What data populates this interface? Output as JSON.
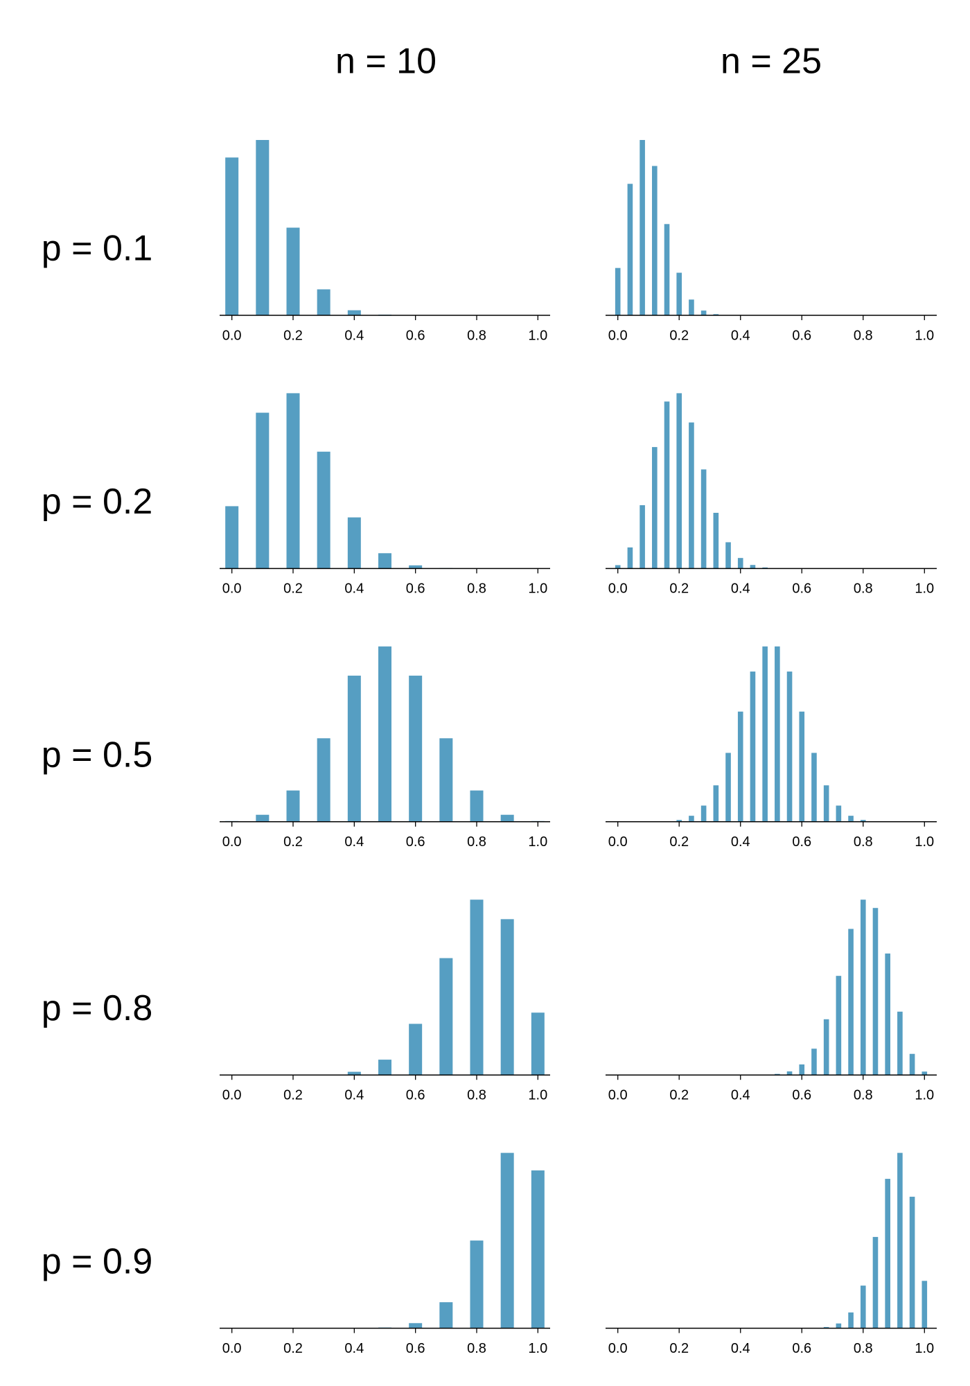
{
  "column_titles": [
    "n = 10",
    "n = 25"
  ],
  "row_labels": [
    "p = 0.1",
    "p = 0.2",
    "p = 0.5",
    "p = 0.8",
    "p = 0.9"
  ],
  "chart_data": [
    {
      "type": "bar",
      "color": "#569ec2",
      "x": [
        0,
        0.1,
        0.2,
        0.3,
        0.4,
        0.5,
        0.6,
        0.7,
        0.8,
        0.9,
        1
      ],
      "values": [
        0.3487,
        0.3874,
        0.1937,
        0.0574,
        0.0112,
        0.0015,
        0.0001,
        0,
        0,
        0,
        0
      ],
      "xlim": [
        -0.04,
        1.04
      ],
      "ylim": [
        0,
        0.3874
      ],
      "xticks": [
        {
          "value": 0,
          "label": "0.0"
        },
        0.2,
        0.4,
        0.6,
        0.8,
        {
          "value": 1,
          "label": "1.0"
        }
      ]
    },
    {
      "type": "bar",
      "color": "#569ec2",
      "x": [
        0,
        0.04,
        0.08,
        0.12,
        0.16,
        0.2,
        0.24,
        0.28,
        0.32,
        0.36,
        0.4,
        0.44,
        0.48,
        0.52,
        0.56,
        0.6,
        0.64,
        0.68,
        0.72,
        0.76,
        0.8,
        0.84,
        0.88,
        0.92,
        0.96,
        1
      ],
      "values": [
        0.0718,
        0.1994,
        0.2659,
        0.2265,
        0.1384,
        0.0646,
        0.0239,
        0.0072,
        0.0018,
        0.0004,
        0.0001,
        0,
        0,
        0,
        0,
        0,
        0,
        0,
        0,
        0,
        0,
        0,
        0,
        0,
        0,
        0
      ],
      "xlim": [
        -0.04,
        1.04
      ],
      "ylim": [
        0,
        0.2659
      ],
      "xticks": [
        {
          "value": 0,
          "label": "0.0"
        },
        0.2,
        0.4,
        0.6,
        0.8,
        {
          "value": 1,
          "label": "1.0"
        }
      ]
    },
    {
      "type": "bar",
      "color": "#569ec2",
      "x": [
        0,
        0.1,
        0.2,
        0.3,
        0.4,
        0.5,
        0.6,
        0.7,
        0.8,
        0.9,
        1
      ],
      "values": [
        0.1074,
        0.2684,
        0.302,
        0.2013,
        0.0881,
        0.0264,
        0.0055,
        0.0008,
        0.0001,
        0,
        0
      ],
      "xlim": [
        -0.04,
        1.04
      ],
      "ylim": [
        0,
        0.302
      ],
      "xticks": [
        {
          "value": 0,
          "label": "0.0"
        },
        0.2,
        0.4,
        0.6,
        0.8,
        {
          "value": 1,
          "label": "1.0"
        }
      ]
    },
    {
      "type": "bar",
      "color": "#569ec2",
      "x": [
        0,
        0.04,
        0.08,
        0.12,
        0.16,
        0.2,
        0.24,
        0.28,
        0.32,
        0.36,
        0.4,
        0.44,
        0.48,
        0.52,
        0.56,
        0.6,
        0.64,
        0.68,
        0.72,
        0.76,
        0.8,
        0.84,
        0.88,
        0.92,
        0.96,
        1
      ],
      "values": [
        0.0038,
        0.0236,
        0.0708,
        0.1358,
        0.1867,
        0.196,
        0.1633,
        0.1108,
        0.0623,
        0.0294,
        0.0118,
        0.004,
        0.0012,
        0.0003,
        0.0001,
        0,
        0,
        0,
        0,
        0,
        0,
        0,
        0,
        0,
        0,
        0
      ],
      "xlim": [
        -0.04,
        1.04
      ],
      "ylim": [
        0,
        0.196
      ],
      "xticks": [
        {
          "value": 0,
          "label": "0.0"
        },
        0.2,
        0.4,
        0.6,
        0.8,
        {
          "value": 1,
          "label": "1.0"
        }
      ]
    },
    {
      "type": "bar",
      "color": "#569ec2",
      "x": [
        0,
        0.1,
        0.2,
        0.3,
        0.4,
        0.5,
        0.6,
        0.7,
        0.8,
        0.9,
        1
      ],
      "values": [
        0.001,
        0.0098,
        0.0439,
        0.1172,
        0.2051,
        0.2461,
        0.2051,
        0.1172,
        0.0439,
        0.0098,
        0.001
      ],
      "xlim": [
        -0.04,
        1.04
      ],
      "ylim": [
        0,
        0.2461
      ],
      "xticks": [
        {
          "value": 0,
          "label": "0.0"
        },
        0.2,
        0.4,
        0.6,
        0.8,
        {
          "value": 1,
          "label": "1.0"
        }
      ]
    },
    {
      "type": "bar",
      "color": "#569ec2",
      "x": [
        0,
        0.04,
        0.08,
        0.12,
        0.16,
        0.2,
        0.24,
        0.28,
        0.32,
        0.36,
        0.4,
        0.44,
        0.48,
        0.52,
        0.56,
        0.6,
        0.64,
        0.68,
        0.72,
        0.76,
        0.8,
        0.84,
        0.88,
        0.92,
        0.96,
        1
      ],
      "values": [
        0,
        0,
        0,
        0.0001,
        0.0004,
        0.0016,
        0.0053,
        0.0143,
        0.0322,
        0.0609,
        0.0974,
        0.1328,
        0.155,
        0.155,
        0.1328,
        0.0974,
        0.0609,
        0.0322,
        0.0143,
        0.0053,
        0.0016,
        0.0004,
        0.0001,
        0,
        0,
        0
      ],
      "xlim": [
        -0.04,
        1.04
      ],
      "ylim": [
        0,
        0.155
      ],
      "xticks": [
        {
          "value": 0,
          "label": "0.0"
        },
        0.2,
        0.4,
        0.6,
        0.8,
        {
          "value": 1,
          "label": "1.0"
        }
      ]
    },
    {
      "type": "bar",
      "color": "#569ec2",
      "x": [
        0,
        0.1,
        0.2,
        0.3,
        0.4,
        0.5,
        0.6,
        0.7,
        0.8,
        0.9,
        1
      ],
      "values": [
        0,
        0,
        0.0001,
        0.0008,
        0.0055,
        0.0264,
        0.0881,
        0.2013,
        0.302,
        0.2684,
        0.1074
      ],
      "xlim": [
        -0.04,
        1.04
      ],
      "ylim": [
        0,
        0.302
      ],
      "xticks": [
        {
          "value": 0,
          "label": "0.0"
        },
        0.2,
        0.4,
        0.6,
        0.8,
        {
          "value": 1,
          "label": "1.0"
        }
      ]
    },
    {
      "type": "bar",
      "color": "#569ec2",
      "x": [
        0,
        0.04,
        0.08,
        0.12,
        0.16,
        0.2,
        0.24,
        0.28,
        0.32,
        0.36,
        0.4,
        0.44,
        0.48,
        0.52,
        0.56,
        0.6,
        0.64,
        0.68,
        0.72,
        0.76,
        0.8,
        0.84,
        0.88,
        0.92,
        0.96,
        1
      ],
      "values": [
        0,
        0,
        0,
        0,
        0,
        0,
        0,
        0,
        0,
        0,
        0,
        0.0001,
        0.0003,
        0.0012,
        0.004,
        0.0118,
        0.0294,
        0.0623,
        0.1108,
        0.1633,
        0.196,
        0.1867,
        0.1358,
        0.0708,
        0.0236,
        0.0038
      ],
      "xlim": [
        -0.04,
        1.04
      ],
      "ylim": [
        0,
        0.196
      ],
      "xticks": [
        {
          "value": 0,
          "label": "0.0"
        },
        0.2,
        0.4,
        0.6,
        0.8,
        {
          "value": 1,
          "label": "1.0"
        }
      ]
    },
    {
      "type": "bar",
      "color": "#569ec2",
      "x": [
        0,
        0.1,
        0.2,
        0.3,
        0.4,
        0.5,
        0.6,
        0.7,
        0.8,
        0.9,
        1
      ],
      "values": [
        0,
        0,
        0,
        0,
        0.0001,
        0.0015,
        0.0112,
        0.0574,
        0.1937,
        0.3874,
        0.3487
      ],
      "xlim": [
        -0.04,
        1.04
      ],
      "ylim": [
        0,
        0.3874
      ],
      "xticks": [
        {
          "value": 0,
          "label": "0.0"
        },
        0.2,
        0.4,
        0.6,
        0.8,
        {
          "value": 1,
          "label": "1.0"
        }
      ]
    },
    {
      "type": "bar",
      "color": "#569ec2",
      "x": [
        0,
        0.04,
        0.08,
        0.12,
        0.16,
        0.2,
        0.24,
        0.28,
        0.32,
        0.36,
        0.4,
        0.44,
        0.48,
        0.52,
        0.56,
        0.6,
        0.64,
        0.68,
        0.72,
        0.76,
        0.8,
        0.84,
        0.88,
        0.92,
        0.96,
        1
      ],
      "values": [
        0,
        0,
        0,
        0,
        0,
        0,
        0,
        0,
        0,
        0,
        0,
        0,
        0,
        0,
        0,
        0.0001,
        0.0004,
        0.0018,
        0.0072,
        0.0239,
        0.0646,
        0.1384,
        0.2265,
        0.2659,
        0.1994,
        0.0718
      ],
      "xlim": [
        -0.04,
        1.04
      ],
      "ylim": [
        0,
        0.2659
      ],
      "xticks": [
        {
          "value": 0,
          "label": "0.0"
        },
        0.2,
        0.4,
        0.6,
        0.8,
        {
          "value": 1,
          "label": "1.0"
        }
      ]
    }
  ]
}
